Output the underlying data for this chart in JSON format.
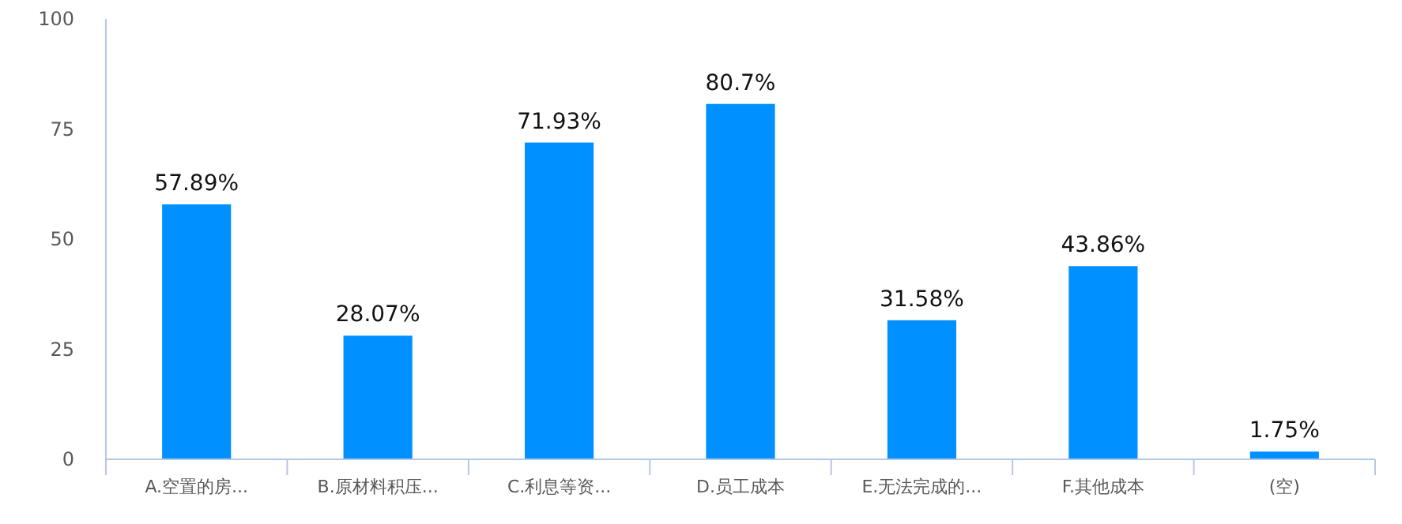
{
  "chart_data": {
    "type": "bar",
    "categories": [
      "A.空置的房...",
      "B.原材料积压...",
      "C.利息等资...",
      "D.员工成本",
      "E.无法完成的...",
      "F.其他成本",
      "(空)"
    ],
    "values": [
      57.89,
      28.07,
      71.93,
      80.7,
      31.58,
      43.86,
      1.75
    ],
    "value_labels": [
      "57.89%",
      "28.07%",
      "71.93%",
      "80.7%",
      "31.58%",
      "43.86%",
      "1.75%"
    ],
    "color": "#0090ff",
    "ylim": [
      0,
      100
    ],
    "yticks": [
      0,
      25,
      50,
      75,
      100
    ],
    "grid": false
  }
}
